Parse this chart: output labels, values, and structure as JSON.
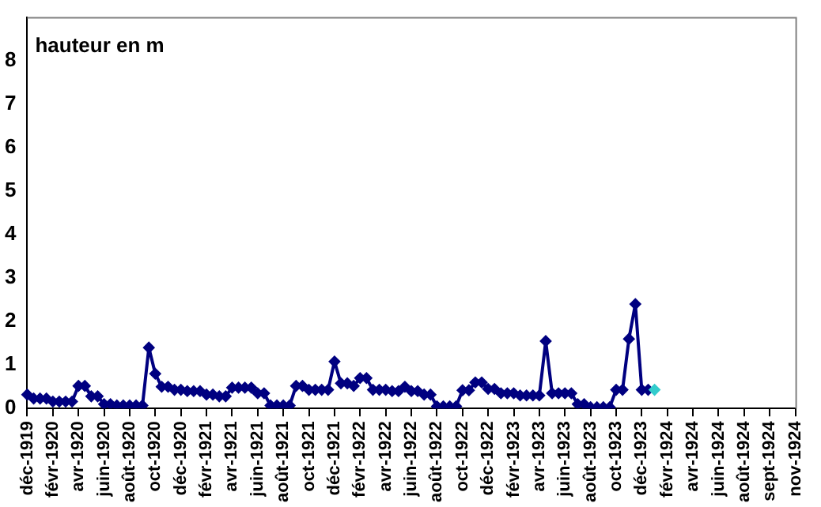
{
  "chart_data": {
    "type": "line",
    "ylabel": "hauteur en m",
    "categories": [
      "déc-1919",
      null,
      null,
      null,
      "févr-1920",
      null,
      null,
      null,
      "avr-1920",
      null,
      null,
      null,
      "juin-1920",
      null,
      null,
      null,
      "août-1920",
      null,
      null,
      null,
      "oct-1920",
      null,
      null,
      null,
      "déc-1920",
      null,
      null,
      null,
      "févr-1921",
      null,
      null,
      null,
      "avr-1921",
      null,
      null,
      null,
      "juin-1921",
      null,
      null,
      null,
      "août-1921",
      null,
      null,
      null,
      "oct-1921",
      null,
      null,
      null,
      "déc-1921",
      null,
      null,
      null,
      "févr-1922",
      null,
      null,
      null,
      "avr-1922",
      null,
      null,
      null,
      "juin-1922",
      null,
      null,
      null,
      "août-1922",
      null,
      null,
      null,
      "oct-1922",
      null,
      null,
      null,
      "déc-1922",
      null,
      null,
      null,
      "févr-1923",
      null,
      null,
      null,
      "avr-1923",
      null,
      null,
      null,
      "juin-1923",
      null,
      null,
      null,
      "août-1923",
      null,
      null,
      null,
      "oct-1923",
      null,
      null,
      null,
      "déc-1923",
      null,
      null,
      null,
      "févr-1924",
      null,
      null,
      null,
      "avr-1924",
      null,
      null,
      null,
      "juin-1924",
      null,
      null,
      null,
      "août-1924",
      null,
      null,
      null,
      "sept-1924",
      null,
      null,
      null,
      "nov-1924"
    ],
    "series": [
      {
        "color": "#000080",
        "values": [
          0.32,
          0.23,
          0.23,
          0.23,
          0.16,
          0.16,
          0.16,
          0.16,
          0.52,
          0.52,
          0.28,
          0.28,
          0.1,
          0.1,
          0.07,
          0.07,
          0.07,
          0.07,
          0.07,
          1.4,
          0.8,
          0.5,
          0.5,
          0.43,
          0.43,
          0.4,
          0.4,
          0.4,
          0.32,
          0.32,
          0.28,
          0.28,
          0.48,
          0.48,
          0.48,
          0.48,
          0.35,
          0.35,
          0.07,
          0.07,
          0.07,
          0.07,
          0.52,
          0.52,
          0.43,
          0.43,
          0.43,
          0.43,
          1.08,
          0.58,
          0.58,
          0.52,
          0.7,
          0.7,
          0.43,
          0.43,
          0.43,
          0.4,
          0.4,
          0.5,
          0.4,
          0.4,
          0.32,
          0.32,
          0.05,
          0.05,
          0.05,
          0.05,
          0.42,
          0.42,
          0.6,
          0.6,
          0.45,
          0.45,
          0.35,
          0.35,
          0.35,
          0.3,
          0.3,
          0.3,
          0.3,
          1.55,
          0.35,
          0.35,
          0.35,
          0.35,
          0.1,
          0.1,
          0.03,
          0.03,
          0.03,
          0.03,
          0.43,
          0.43,
          1.6,
          2.4,
          0.43,
          0.43,
          0.43,
          null,
          null,
          null,
          null,
          null,
          null,
          null,
          null,
          null,
          null,
          null,
          null,
          null,
          null,
          null,
          null,
          null,
          null,
          null,
          null,
          null,
          null
        ],
        "colors": [
          "#000080",
          "#000080",
          "#000080",
          "#000080",
          "#000080",
          "#000080",
          "#000080",
          "#000080",
          "#000080",
          "#000080",
          "#000080",
          "#000080",
          "#000080",
          "#000080",
          "#000080",
          "#000080",
          "#000080",
          "#000080",
          "#000080",
          "#000080",
          "#000080",
          "#000080",
          "#000080",
          "#000080",
          "#000080",
          "#000080",
          "#000080",
          "#000080",
          "#000080",
          "#000080",
          "#000080",
          "#000080",
          "#000080",
          "#000080",
          "#000080",
          "#000080",
          "#000080",
          "#000080",
          "#000080",
          "#000080",
          "#000080",
          "#000080",
          "#000080",
          "#000080",
          "#000080",
          "#000080",
          "#000080",
          "#000080",
          "#000080",
          "#000080",
          "#000080",
          "#000080",
          "#000080",
          "#000080",
          "#000080",
          "#000080",
          "#000080",
          "#000080",
          "#000080",
          "#000080",
          "#000080",
          "#000080",
          "#000080",
          "#000080",
          "#000080",
          "#000080",
          "#000080",
          "#000080",
          "#000080",
          "#000080",
          "#000080",
          "#000080",
          "#000080",
          "#000080",
          "#000080",
          "#000080",
          "#000080",
          "#000080",
          "#000080",
          "#000080",
          "#000080",
          "#000080",
          "#000080",
          "#000080",
          "#000080",
          "#000080",
          "#000080",
          "#000080",
          "#000080",
          "#000080",
          "#000080",
          "#000080",
          "#000080",
          "#000080",
          "#000080",
          "#000080",
          "#000080",
          "#000080",
          "#33cccc",
          "#000080",
          "#000080",
          "#000080",
          "#000080",
          "#000080",
          "#000080",
          "#000080",
          "#000080",
          "#000080",
          "#000080",
          "#000080",
          "#000080",
          "#000080",
          "#000080",
          "#000080",
          "#000080",
          "#000080",
          "#000080",
          "#000080",
          "#000080",
          "#000080",
          "#000080"
        ]
      }
    ],
    "ylim": [
      0,
      9
    ],
    "yticks": [
      0,
      1,
      2,
      3,
      4,
      5,
      6,
      7,
      8
    ],
    "marker": "diamond",
    "line_style": "solid"
  }
}
